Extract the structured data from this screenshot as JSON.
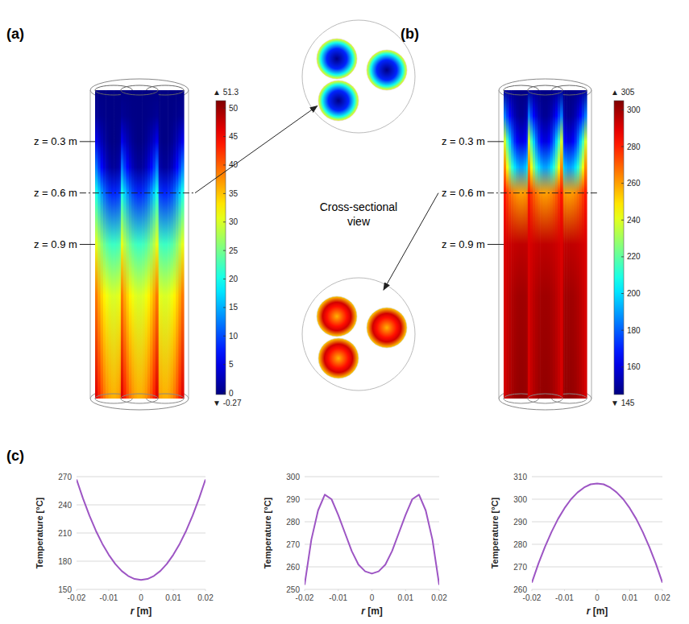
{
  "chart_data": [
    {
      "type": "field",
      "panel_label": "(a)",
      "zlim": [
        0,
        1.8
      ],
      "z_ticks": [
        {
          "value": 0.3,
          "label": "z = 0.3 m"
        },
        {
          "value": 0.6,
          "label": "z = 0.6 m"
        },
        {
          "value": 0.9,
          "label": "z = 0.9 m"
        }
      ],
      "field": {
        "z": [
          0,
          0.15,
          0.3,
          0.45,
          0.6,
          0.9,
          1.2,
          1.8
        ],
        "center": [
          0,
          0,
          0,
          1,
          8,
          22,
          30,
          36
        ],
        "wall": [
          0,
          1,
          6,
          14,
          22,
          32,
          40,
          48
        ]
      },
      "colorbar": {
        "min": {
          "value": -0.27,
          "label": "▼ -0.27"
        },
        "max": {
          "value": 51.3,
          "label": "▲ 51.3"
        },
        "ticks": [
          0,
          5,
          10,
          15,
          20,
          25,
          30,
          35,
          40,
          45,
          50
        ]
      },
      "cross_section": {
        "z": 0.6,
        "r": [
          0,
          0.01,
          0.016,
          0.02
        ],
        "values": [
          0,
          8,
          20,
          32
        ]
      },
      "annotation": "Cross-sectional view"
    },
    {
      "type": "field",
      "panel_label": "(b)",
      "zlim": [
        0,
        1.8
      ],
      "z_ticks": [
        {
          "value": 0.3,
          "label": "z = 0.3 m"
        },
        {
          "value": 0.6,
          "label": "z = 0.6 m"
        },
        {
          "value": 0.9,
          "label": "z = 0.9 m"
        }
      ],
      "field": {
        "z": [
          0,
          0.15,
          0.3,
          0.45,
          0.6,
          0.9,
          1.2,
          1.8
        ],
        "center": [
          146,
          148,
          160,
          190,
          260,
          295,
          300,
          302
        ],
        "wall": [
          150,
          190,
          250,
          275,
          285,
          290,
          290,
          290
        ]
      },
      "colorbar": {
        "min": {
          "value": 145,
          "label": "▼ 145"
        },
        "max": {
          "value": 305,
          "label": "▲ 305"
        },
        "ticks": [
          160,
          180,
          200,
          220,
          240,
          260,
          280,
          300
        ]
      },
      "cross_section": {
        "z": 0.6,
        "r": [
          0,
          0.01,
          0.014,
          0.02
        ],
        "values": [
          257,
          283,
          292,
          252
        ]
      }
    },
    {
      "type": "line",
      "panel_label": "(c)",
      "color": "#9d55c4",
      "grid": true,
      "x_label": "r [m]",
      "y_label": "Temperature [°C]",
      "xlim": [
        -0.02,
        0.02
      ],
      "xticks": [
        -0.02,
        -0.01,
        0,
        0.01,
        0.02
      ],
      "ylim": [
        150,
        270
      ],
      "yticks": [
        150,
        180,
        210,
        240,
        270
      ],
      "x": [
        -0.02,
        -0.018,
        -0.016,
        -0.014,
        -0.012,
        -0.01,
        -0.008,
        -0.006,
        -0.004,
        -0.002,
        0,
        0.002,
        0.004,
        0.006,
        0.008,
        0.01,
        0.012,
        0.014,
        0.016,
        0.018,
        0.02
      ],
      "values": [
        267,
        246.7,
        228.5,
        212.4,
        198.5,
        186.8,
        177.1,
        169.6,
        164.3,
        161.1,
        160,
        161.1,
        164.3,
        169.6,
        177.1,
        186.8,
        198.5,
        212.4,
        228.5,
        246.7,
        267
      ]
    },
    {
      "type": "line",
      "color": "#9d55c4",
      "grid": true,
      "x_label": "r [m]",
      "y_label": "Temperature [°C]",
      "xlim": [
        -0.02,
        0.02
      ],
      "xticks": [
        -0.02,
        -0.01,
        0,
        0.01,
        0.02
      ],
      "ylim": [
        250,
        300
      ],
      "yticks": [
        250,
        260,
        270,
        280,
        290,
        300
      ],
      "x": [
        -0.02,
        -0.018,
        -0.016,
        -0.014,
        -0.012,
        -0.01,
        -0.008,
        -0.006,
        -0.004,
        -0.002,
        0,
        0.002,
        0.004,
        0.006,
        0.008,
        0.01,
        0.012,
        0.014,
        0.016,
        0.018,
        0.02
      ],
      "values": [
        252,
        272,
        285,
        292,
        290,
        283,
        275,
        267,
        261,
        258,
        257,
        258,
        261,
        267,
        275,
        283,
        290,
        292,
        285,
        272,
        252
      ]
    },
    {
      "type": "line",
      "color": "#9d55c4",
      "grid": true,
      "x_label": "r [m]",
      "y_label": "Temperature [°C]",
      "xlim": [
        -0.02,
        0.02
      ],
      "xticks": [
        -0.02,
        -0.01,
        0,
        0.01,
        0.02
      ],
      "ylim": [
        260,
        310
      ],
      "yticks": [
        260,
        270,
        280,
        290,
        300,
        310
      ],
      "x": [
        -0.02,
        -0.018,
        -0.016,
        -0.014,
        -0.012,
        -0.01,
        -0.008,
        -0.006,
        -0.004,
        -0.002,
        0,
        0.002,
        0.004,
        0.006,
        0.008,
        0.01,
        0.012,
        0.014,
        0.016,
        0.018,
        0.02
      ],
      "values": [
        263,
        271.4,
        278.8,
        285.4,
        291.2,
        296,
        300,
        303,
        305.2,
        306.6,
        307,
        306.6,
        305.2,
        303,
        300,
        296,
        291.2,
        285.4,
        278.8,
        271.4,
        263
      ]
    }
  ]
}
